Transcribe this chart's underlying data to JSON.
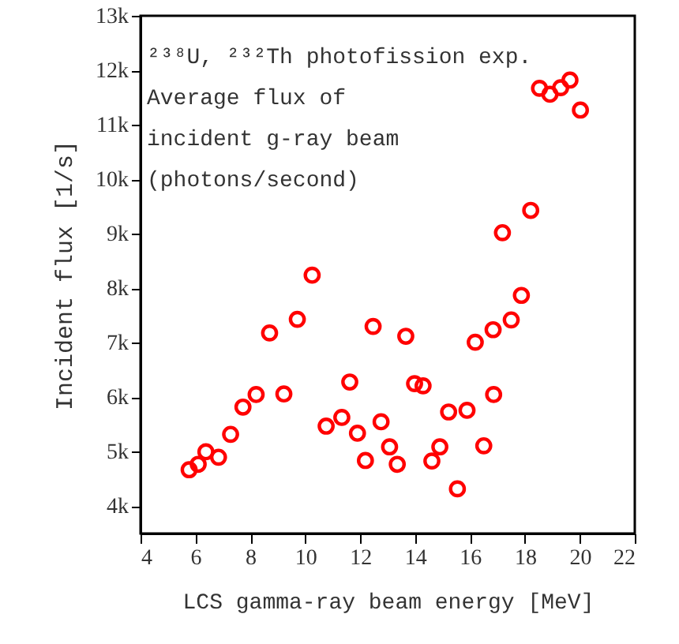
{
  "chart_data": {
    "type": "scatter",
    "xlabel": "LCS gamma-ray beam energy [MeV]",
    "ylabel": "Incident flux [1/s]",
    "annotations": [
      "²³⁸U, ²³²Th photofission exp.",
      "Average flux of",
      "incident g-ray beam",
      "(photons/second)"
    ],
    "xlim": [
      4,
      22
    ],
    "xticks": [
      4,
      6,
      8,
      10,
      12,
      14,
      16,
      18,
      20,
      22
    ],
    "ylim": [
      3500,
      13000
    ],
    "yticks": [
      {
        "value": 4000,
        "label": "4k"
      },
      {
        "value": 5000,
        "label": "5k"
      },
      {
        "value": 6000,
        "label": "6k"
      },
      {
        "value": 7000,
        "label": "7k"
      },
      {
        "value": 8000,
        "label": "8k"
      },
      {
        "value": 9000,
        "label": "9k"
      },
      {
        "value": 10000,
        "label": "10k"
      },
      {
        "value": 11000,
        "label": "11k"
      },
      {
        "value": 12000,
        "label": "12k"
      },
      {
        "value": 13000,
        "label": "13k"
      }
    ],
    "grid": false,
    "marker": "circle",
    "series": [
      {
        "color": "#ff0000",
        "x": [
          5.77,
          6.1,
          6.38,
          6.84,
          7.28,
          7.73,
          8.21,
          8.7,
          9.22,
          9.71,
          10.25,
          10.76,
          11.33,
          11.62,
          11.9,
          12.19,
          12.47,
          12.76,
          13.07,
          13.35,
          13.66,
          13.98,
          14.29,
          14.61,
          14.9,
          15.22,
          15.54,
          15.89,
          16.19,
          16.5,
          16.84,
          16.86,
          17.18,
          17.5,
          17.87,
          18.21,
          18.53,
          18.91,
          19.3,
          19.64,
          20.02
        ],
        "values": [
          4670,
          4770,
          5000,
          4900,
          5320,
          5820,
          6050,
          7180,
          6060,
          7430,
          8240,
          5470,
          5630,
          6280,
          5340,
          4840,
          7300,
          5550,
          5090,
          4770,
          7120,
          6250,
          6210,
          4830,
          5090,
          5730,
          4320,
          5760,
          7010,
          5110,
          7240,
          6050,
          9020,
          7420,
          7870,
          9430,
          11670,
          11560,
          11680,
          11820,
          11270
        ]
      }
    ]
  }
}
